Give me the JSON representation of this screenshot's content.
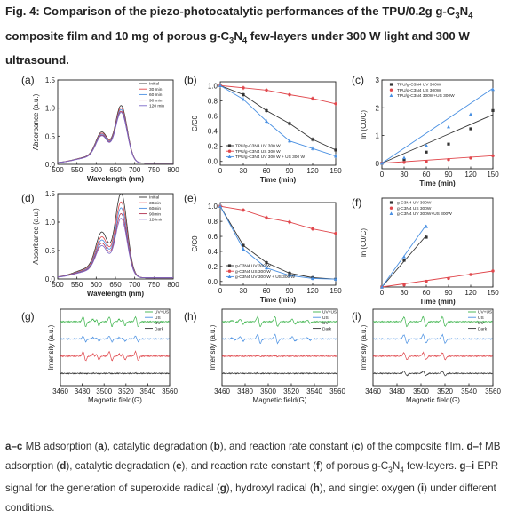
{
  "title_parts": [
    {
      "t": "Fig. 4: Comparison of the piezo-photocatalytic performances of the TPU/0.2g g-C"
    },
    {
      "t": "3",
      "sub": true
    },
    {
      "t": "N"
    },
    {
      "t": "4",
      "sub": true
    },
    {
      "t": " composite film and 10 mg of porous g-C"
    },
    {
      "t": "3",
      "sub": true
    },
    {
      "t": "N"
    },
    {
      "t": "4",
      "sub": true
    },
    {
      "t": " few-layers under 300 W light and 300 W ultrasound."
    }
  ],
  "caption_parts": [
    {
      "t": "a–c",
      "b": true
    },
    {
      "t": " MB adsorption ("
    },
    {
      "t": "a",
      "b": true
    },
    {
      "t": "), catalytic degradation ("
    },
    {
      "t": "b",
      "b": true
    },
    {
      "t": "), and reaction rate constant ("
    },
    {
      "t": "c",
      "b": true
    },
    {
      "t": ") of the composite film. "
    },
    {
      "t": "d–f",
      "b": true
    },
    {
      "t": " MB adsorption ("
    },
    {
      "t": "d",
      "b": true
    },
    {
      "t": "), catalytic degradation ("
    },
    {
      "t": "e",
      "b": true
    },
    {
      "t": "), and reaction rate constant ("
    },
    {
      "t": "f",
      "b": true
    },
    {
      "t": ") of porous g-C"
    },
    {
      "t": "3",
      "sub": true
    },
    {
      "t": "N"
    },
    {
      "t": "4",
      "sub": true
    },
    {
      "t": " few-layers. "
    },
    {
      "t": "g–i",
      "b": true
    },
    {
      "t": " EPR signal for the generation of superoxide radical ("
    },
    {
      "t": "g",
      "b": true
    },
    {
      "t": "), hydroxyl radical ("
    },
    {
      "t": "h",
      "b": true
    },
    {
      "t": "), and singlet oxygen ("
    },
    {
      "t": "i",
      "b": true
    },
    {
      "t": ") under different conditions."
    }
  ],
  "colors": {
    "black": "#333333",
    "red": "#e0474c",
    "blue": "#4a90e2",
    "green": "#3cb44b",
    "gray": "#888888",
    "purple": "#7b68c8",
    "darkred": "#b03050"
  },
  "chart_data": [
    {
      "id": "a",
      "label": "(a)",
      "type": "line",
      "xlabel": "Wavelength (nm)",
      "ylabel": "Absorbance (a.u.)",
      "xlim": [
        500,
        800
      ],
      "ylim": [
        0,
        1.5
      ],
      "xticks": [
        500,
        550,
        600,
        650,
        700,
        750,
        800
      ],
      "yticks": [
        0,
        0.5,
        1.0,
        1.5
      ],
      "ytick_labels": [
        "0.0",
        "0.5",
        "1.0",
        "1.5"
      ],
      "series": [
        {
          "name": "Initial",
          "peak": 1.0,
          "color": "#333333"
        },
        {
          "name": "30 min",
          "peak": 0.96,
          "color": "#e0474c"
        },
        {
          "name": "60 min",
          "peak": 0.93,
          "color": "#4a90e2"
        },
        {
          "name": "90 min",
          "peak": 0.9,
          "color": "#b03050"
        },
        {
          "name": "120 min",
          "peak": 0.88,
          "color": "#7b68c8"
        }
      ]
    },
    {
      "id": "b",
      "label": "(b)",
      "type": "line",
      "xlabel": "Time (min)",
      "ylabel": "C/C0",
      "xlim": [
        0,
        150
      ],
      "ylim": [
        -0.05,
        1.05
      ],
      "xticks": [
        0,
        30,
        60,
        90,
        120,
        150
      ],
      "yticks": [
        0,
        0.2,
        0.4,
        0.6,
        0.8,
        1.0
      ],
      "ytick_labels": [
        "0.0",
        "0.2",
        "0.4",
        "0.6",
        "0.8",
        "1.0"
      ],
      "x": [
        0,
        30,
        60,
        90,
        120,
        150
      ],
      "series": [
        {
          "name": "TPU/g-C3N4 UV 300 W",
          "values": [
            1.0,
            0.88,
            0.67,
            0.5,
            0.29,
            0.15
          ],
          "color": "#333333",
          "marker": "square"
        },
        {
          "name": "TPU/g-C3N4 US 300 W",
          "values": [
            1.0,
            0.97,
            0.94,
            0.88,
            0.83,
            0.76
          ],
          "color": "#e0474c",
          "marker": "circle"
        },
        {
          "name": "TPU/g-C3N4 UV 300 W + US 300 W",
          "values": [
            1.0,
            0.82,
            0.53,
            0.27,
            0.17,
            0.07
          ],
          "color": "#4a90e2",
          "marker": "triangle"
        }
      ]
    },
    {
      "id": "c",
      "label": "(c)",
      "type": "scatter",
      "xlabel": "Time (min)",
      "ylabel": "ln (C0/C)",
      "xlim": [
        0,
        150
      ],
      "ylim": [
        -0.2,
        3
      ],
      "xticks": [
        0,
        30,
        60,
        90,
        120,
        150
      ],
      "yticks": [
        0,
        1,
        2,
        3
      ],
      "ytick_labels": [
        "0",
        "1",
        "2",
        "3"
      ],
      "x": [
        0,
        30,
        60,
        90,
        120,
        150
      ],
      "series": [
        {
          "name": "TPU/g-C3N4 UV 300W",
          "values": [
            0,
            0.13,
            0.4,
            0.69,
            1.24,
            1.9
          ],
          "fit": [
            0,
            1.75
          ],
          "color": "#333333",
          "marker": "square"
        },
        {
          "name": "TPU/g-C3N4 US 300W",
          "values": [
            0,
            0.03,
            0.06,
            0.13,
            0.19,
            0.27
          ],
          "fit": [
            0,
            0.27
          ],
          "color": "#e0474c",
          "marker": "circle"
        },
        {
          "name": "TPU/g-C3N4 300W+US 300W",
          "values": [
            0,
            0.2,
            0.64,
            1.31,
            1.77,
            2.66
          ],
          "fit": [
            0,
            2.7
          ],
          "color": "#4a90e2",
          "marker": "triangle"
        }
      ]
    },
    {
      "id": "d",
      "label": "(d)",
      "type": "line",
      "xlabel": "Wavelength (nm)",
      "ylabel": "Absorbance (a.u.)",
      "xlim": [
        500,
        800
      ],
      "ylim": [
        0,
        1.5
      ],
      "xticks": [
        500,
        550,
        600,
        650,
        700,
        750,
        800
      ],
      "yticks": [
        0,
        0.5,
        1.0,
        1.5
      ],
      "ytick_labels": [
        "0.0",
        "0.5",
        "1.0",
        "1.5"
      ],
      "series": [
        {
          "name": "Initial",
          "peak": 1.45,
          "color": "#333333"
        },
        {
          "name": "30min",
          "peak": 1.3,
          "color": "#e0474c"
        },
        {
          "name": "60min",
          "peak": 1.2,
          "color": "#4a90e2"
        },
        {
          "name": "90min",
          "peak": 1.1,
          "color": "#b03050"
        },
        {
          "name": "120min",
          "peak": 1.02,
          "color": "#7b68c8"
        }
      ]
    },
    {
      "id": "e",
      "label": "(e)",
      "type": "line",
      "xlabel": "Time (min)",
      "ylabel": "C/C0",
      "xlim": [
        0,
        150
      ],
      "ylim": [
        -0.05,
        1.05
      ],
      "xticks": [
        0,
        30,
        60,
        90,
        120,
        150
      ],
      "yticks": [
        0,
        0.2,
        0.4,
        0.6,
        0.8,
        1.0
      ],
      "ytick_labels": [
        "0.0",
        "0.2",
        "0.4",
        "0.6",
        "0.8",
        "1.0"
      ],
      "x": [
        0,
        30,
        60,
        90,
        120,
        150
      ],
      "series": [
        {
          "name": "g-C3N4 UV 300 W",
          "values": [
            1.0,
            0.48,
            0.25,
            0.11,
            0.05,
            0.03
          ],
          "color": "#333333",
          "marker": "square"
        },
        {
          "name": "g-C3N4 US 300 W",
          "values": [
            1.0,
            0.95,
            0.85,
            0.79,
            0.7,
            0.64
          ],
          "color": "#e0474c",
          "marker": "circle"
        },
        {
          "name": "g-C3N4 UV 300 W + US 300 W",
          "values": [
            1.0,
            0.43,
            0.18,
            0.08,
            0.04,
            0.03
          ],
          "color": "#4a90e2",
          "marker": "triangle"
        }
      ]
    },
    {
      "id": "f",
      "label": "(f)",
      "type": "scatter",
      "xlabel": "Time (min)",
      "ylabel": "ln (C0/C)",
      "xlim": [
        0,
        150
      ],
      "ylim": [
        0,
        2.5
      ],
      "xticks": [
        0,
        30,
        60,
        90,
        120,
        150
      ],
      "yticks": [],
      "ytick_labels": [],
      "x": [
        0,
        30,
        60,
        90,
        120,
        150
      ],
      "series": [
        {
          "name": "g-C3N4 UV 300W",
          "x": [
            0,
            30,
            60
          ],
          "values": [
            0,
            0.75,
            1.4
          ],
          "fit": [
            0,
            60,
            1.45
          ],
          "color": "#333333",
          "marker": "square"
        },
        {
          "name": "g-C3N4 US 300W",
          "x": [
            0,
            30,
            60,
            90,
            120,
            150
          ],
          "values": [
            0,
            0.06,
            0.16,
            0.24,
            0.35,
            0.45
          ],
          "fit": [
            0,
            150,
            0.45
          ],
          "color": "#e0474c",
          "marker": "circle"
        },
        {
          "name": "g-C3N4 UV 300W+US 300W",
          "x": [
            0,
            30,
            60
          ],
          "values": [
            0,
            0.85,
            1.7
          ],
          "fit": [
            0,
            60,
            1.75
          ],
          "color": "#4a90e2",
          "marker": "triangle"
        }
      ]
    },
    {
      "id": "g",
      "label": "(g)",
      "type": "line",
      "xlabel": "Magnetic field(G)",
      "ylabel": "Intensity (a.u.)",
      "xlim": [
        3460,
        3560
      ],
      "xticks": [
        3460,
        3480,
        3500,
        3520,
        3540,
        3560
      ],
      "pattern": "superoxide",
      "series": [
        {
          "name": "UV+US",
          "color": "#3cb44b",
          "amp": 1.0
        },
        {
          "name": "US",
          "color": "#4a90e2",
          "amp": 0.55
        },
        {
          "name": "UV",
          "color": "#e0474c",
          "amp": 0.9
        },
        {
          "name": "Dark",
          "color": "#333333",
          "amp": 0.05
        }
      ]
    },
    {
      "id": "h",
      "label": "(h)",
      "type": "line",
      "xlabel": "Magnetic field(G)",
      "ylabel": "Intensity (a.u.)",
      "xlim": [
        3460,
        3560
      ],
      "xticks": [
        3460,
        3480,
        3500,
        3520,
        3540,
        3560
      ],
      "pattern": "hydroxyl",
      "series": [
        {
          "name": "UV+US",
          "color": "#3cb44b",
          "amp": 1.0
        },
        {
          "name": "US",
          "color": "#4a90e2",
          "amp": 0.9
        },
        {
          "name": "UV",
          "color": "#e0474c",
          "amp": 0.08
        },
        {
          "name": "Dark",
          "color": "#333333",
          "amp": 0.03
        }
      ]
    },
    {
      "id": "i",
      "label": "(i)",
      "type": "line",
      "xlabel": "Magnetic field(G)",
      "ylabel": "Intensity (a.u.)",
      "xlim": [
        3460,
        3560
      ],
      "xticks": [
        3460,
        3480,
        3500,
        3520,
        3540,
        3560
      ],
      "pattern": "singlet",
      "series": [
        {
          "name": "UV+US",
          "color": "#3cb44b",
          "amp": 1.0
        },
        {
          "name": "US",
          "color": "#4a90e2",
          "amp": 0.85
        },
        {
          "name": "UV",
          "color": "#e0474c",
          "amp": 0.7
        },
        {
          "name": "Dark",
          "color": "#333333",
          "amp": 0.45
        }
      ]
    }
  ]
}
